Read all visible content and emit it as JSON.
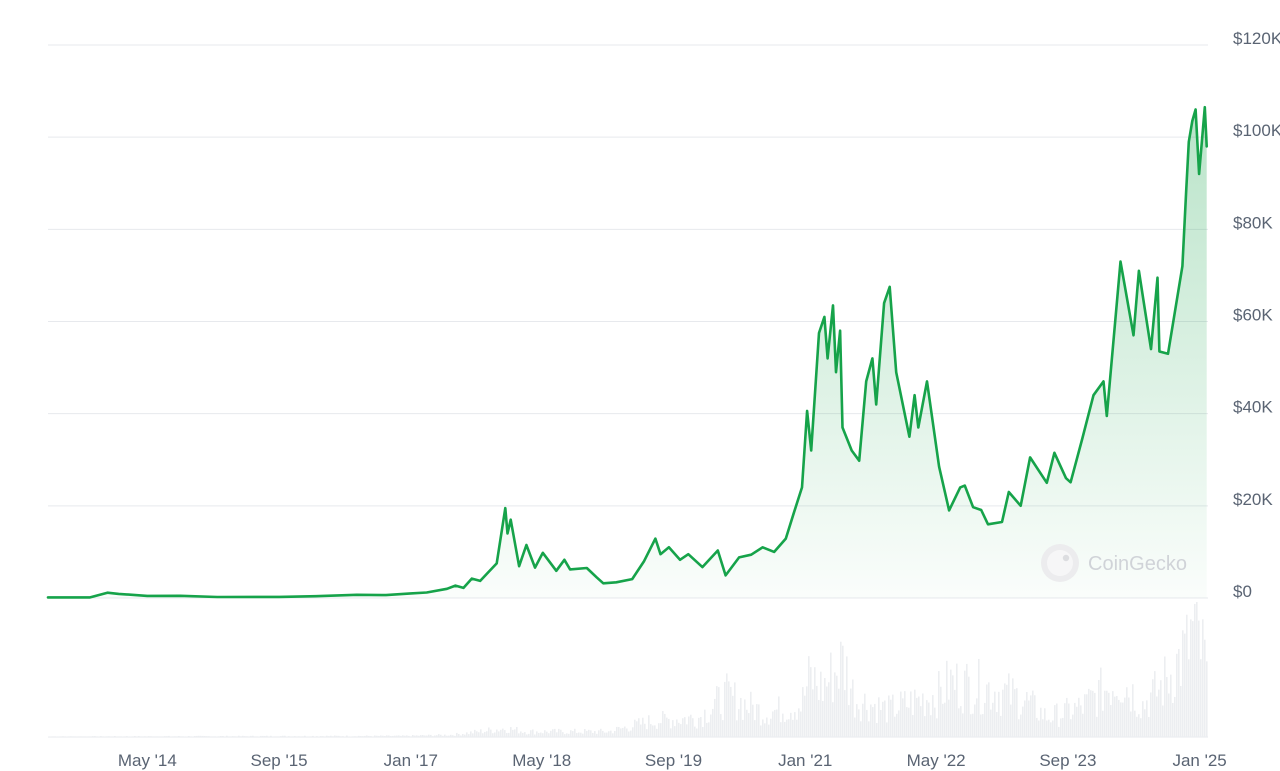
{
  "chart_data": {
    "type": "area",
    "title": "",
    "xlabel": "",
    "ylabel": "",
    "x_range": [
      "2013-04-28",
      "2025-02-01"
    ],
    "ylim": [
      0,
      120000
    ],
    "grid": true,
    "legend": "none",
    "y_axis_position": "right",
    "y_ticks": [
      {
        "value": 120000,
        "label": "$120K"
      },
      {
        "value": 100000,
        "label": "$100K"
      },
      {
        "value": 80000,
        "label": "$80K"
      },
      {
        "value": 60000,
        "label": "$60K"
      },
      {
        "value": 40000,
        "label": "$40K"
      },
      {
        "value": 20000,
        "label": "$20K"
      },
      {
        "value": 0,
        "label": "$0"
      }
    ],
    "x_ticks": [
      {
        "date": "2014-05-01",
        "label": "May '14"
      },
      {
        "date": "2015-09-01",
        "label": "Sep '15"
      },
      {
        "date": "2017-01-01",
        "label": "Jan '17"
      },
      {
        "date": "2018-05-01",
        "label": "May '18"
      },
      {
        "date": "2019-09-01",
        "label": "Sep '19"
      },
      {
        "date": "2021-01-01",
        "label": "Jan '21"
      },
      {
        "date": "2022-05-01",
        "label": "May '22"
      },
      {
        "date": "2023-09-01",
        "label": "Sep '23"
      },
      {
        "date": "2025-01-01",
        "label": "Jan '25"
      }
    ],
    "series": [
      {
        "values": [
          [
            "2013-04-28",
            135
          ],
          [
            "2013-10-01",
            125
          ],
          [
            "2013-12-04",
            1150
          ],
          [
            "2014-01-15",
            900
          ],
          [
            "2014-05-01",
            450
          ],
          [
            "2014-09-01",
            480
          ],
          [
            "2015-01-15",
            210
          ],
          [
            "2015-09-01",
            230
          ],
          [
            "2016-01-15",
            400
          ],
          [
            "2016-06-15",
            700
          ],
          [
            "2016-10-01",
            620
          ],
          [
            "2017-01-01",
            1000
          ],
          [
            "2017-03-01",
            1200
          ],
          [
            "2017-05-15",
            2000
          ],
          [
            "2017-06-15",
            2700
          ],
          [
            "2017-07-15",
            2200
          ],
          [
            "2017-08-15",
            4200
          ],
          [
            "2017-09-15",
            3700
          ],
          [
            "2017-10-15",
            5600
          ],
          [
            "2017-11-15",
            7500
          ],
          [
            "2017-12-17",
            19500
          ],
          [
            "2017-12-25",
            14000
          ],
          [
            "2018-01-06",
            17000
          ],
          [
            "2018-02-06",
            6900
          ],
          [
            "2018-03-05",
            11500
          ],
          [
            "2018-04-06",
            6600
          ],
          [
            "2018-05-05",
            9800
          ],
          [
            "2018-06-24",
            5900
          ],
          [
            "2018-07-24",
            8300
          ],
          [
            "2018-08-14",
            6200
          ],
          [
            "2018-10-15",
            6500
          ],
          [
            "2018-11-20",
            4500
          ],
          [
            "2018-12-15",
            3200
          ],
          [
            "2019-02-01",
            3400
          ],
          [
            "2019-04-01",
            4100
          ],
          [
            "2019-05-15",
            8000
          ],
          [
            "2019-06-26",
            12900
          ],
          [
            "2019-07-15",
            9500
          ],
          [
            "2019-08-15",
            11000
          ],
          [
            "2019-09-25",
            8300
          ],
          [
            "2019-10-26",
            9500
          ],
          [
            "2019-12-17",
            6700
          ],
          [
            "2020-02-12",
            10300
          ],
          [
            "2020-03-12",
            4900
          ],
          [
            "2020-05-01",
            8800
          ],
          [
            "2020-06-15",
            9400
          ],
          [
            "2020-07-27",
            11000
          ],
          [
            "2020-09-08",
            10000
          ],
          [
            "2020-10-21",
            12900
          ],
          [
            "2020-11-20",
            18500
          ],
          [
            "2020-12-20",
            24000
          ],
          [
            "2021-01-08",
            40600
          ],
          [
            "2021-01-23",
            32000
          ],
          [
            "2021-02-21",
            57500
          ],
          [
            "2021-03-13",
            61000
          ],
          [
            "2021-03-25",
            52000
          ],
          [
            "2021-04-14",
            63500
          ],
          [
            "2021-04-25",
            49000
          ],
          [
            "2021-05-10",
            58000
          ],
          [
            "2021-05-19",
            37000
          ],
          [
            "2021-06-22",
            32000
          ],
          [
            "2021-07-20",
            29800
          ],
          [
            "2021-08-15",
            47000
          ],
          [
            "2021-09-07",
            52000
          ],
          [
            "2021-09-21",
            42000
          ],
          [
            "2021-10-20",
            64000
          ],
          [
            "2021-11-10",
            67500
          ],
          [
            "2021-12-04",
            49000
          ],
          [
            "2022-01-22",
            35000
          ],
          [
            "2022-02-10",
            44000
          ],
          [
            "2022-02-24",
            37000
          ],
          [
            "2022-03-28",
            47000
          ],
          [
            "2022-05-12",
            28500
          ],
          [
            "2022-06-18",
            19000
          ],
          [
            "2022-07-29",
            24000
          ],
          [
            "2022-08-15",
            24400
          ],
          [
            "2022-09-15",
            19700
          ],
          [
            "2022-10-15",
            19100
          ],
          [
            "2022-11-09",
            16000
          ],
          [
            "2022-12-31",
            16500
          ],
          [
            "2023-01-25",
            23000
          ],
          [
            "2023-03-10",
            20000
          ],
          [
            "2023-04-14",
            30500
          ],
          [
            "2023-06-15",
            25000
          ],
          [
            "2023-07-13",
            31500
          ],
          [
            "2023-08-25",
            26000
          ],
          [
            "2023-09-11",
            25100
          ],
          [
            "2023-10-24",
            34500
          ],
          [
            "2023-12-05",
            44000
          ],
          [
            "2024-01-11",
            47000
          ],
          [
            "2024-01-23",
            39500
          ],
          [
            "2024-03-14",
            73000
          ],
          [
            "2024-05-01",
            57000
          ],
          [
            "2024-05-21",
            71000
          ],
          [
            "2024-07-05",
            54000
          ],
          [
            "2024-07-29",
            69500
          ],
          [
            "2024-08-05",
            53500
          ],
          [
            "2024-09-06",
            53000
          ],
          [
            "2024-10-29",
            72000
          ],
          [
            "2024-11-12",
            88000
          ],
          [
            "2024-11-22",
            99000
          ],
          [
            "2024-12-05",
            103500
          ],
          [
            "2024-12-17",
            106000
          ],
          [
            "2024-12-30",
            92000
          ],
          [
            "2025-01-20",
            106500
          ],
          [
            "2025-01-27",
            98000
          ]
        ]
      }
    ],
    "volume": {
      "note_values": "relative trading volume, 0-1",
      "values": [
        [
          "2013-04-28",
          0.005
        ],
        [
          "2016-12-01",
          0.01
        ],
        [
          "2017-06-01",
          0.02
        ],
        [
          "2017-12-15",
          0.08
        ],
        [
          "2018-03-01",
          0.05
        ],
        [
          "2019-01-01",
          0.05
        ],
        [
          "2019-06-15",
          0.15
        ],
        [
          "2019-12-01",
          0.18
        ],
        [
          "2020-03-12",
          0.38
        ],
        [
          "2020-08-01",
          0.22
        ],
        [
          "2020-12-15",
          0.3
        ],
        [
          "2021-01-15",
          0.55
        ],
        [
          "2021-03-01",
          0.45
        ],
        [
          "2021-05-19",
          0.7
        ],
        [
          "2021-07-01",
          0.35
        ],
        [
          "2021-11-01",
          0.25
        ],
        [
          "2022-01-01",
          0.3
        ],
        [
          "2022-05-12",
          0.4
        ],
        [
          "2022-06-18",
          0.5
        ],
        [
          "2022-11-09",
          0.45
        ],
        [
          "2023-03-15",
          0.35
        ],
        [
          "2023-06-15",
          0.18
        ],
        [
          "2023-10-24",
          0.28
        ],
        [
          "2024-03-05",
          0.55
        ],
        [
          "2024-06-01",
          0.3
        ],
        [
          "2024-08-05",
          0.45
        ],
        [
          "2024-11-12",
          0.8
        ],
        [
          "2024-12-05",
          1.0
        ],
        [
          "2025-01-20",
          0.7
        ],
        [
          "2025-01-27",
          0.5
        ]
      ]
    }
  },
  "watermark": {
    "text": "CoinGecko",
    "icon": "gecko-logo-icon"
  },
  "colors": {
    "line": "#16a34a",
    "fill_top": "#16a34a",
    "grid": "#e7e9ed",
    "volume": "#eceef1",
    "tick_text": "#5a6473"
  }
}
